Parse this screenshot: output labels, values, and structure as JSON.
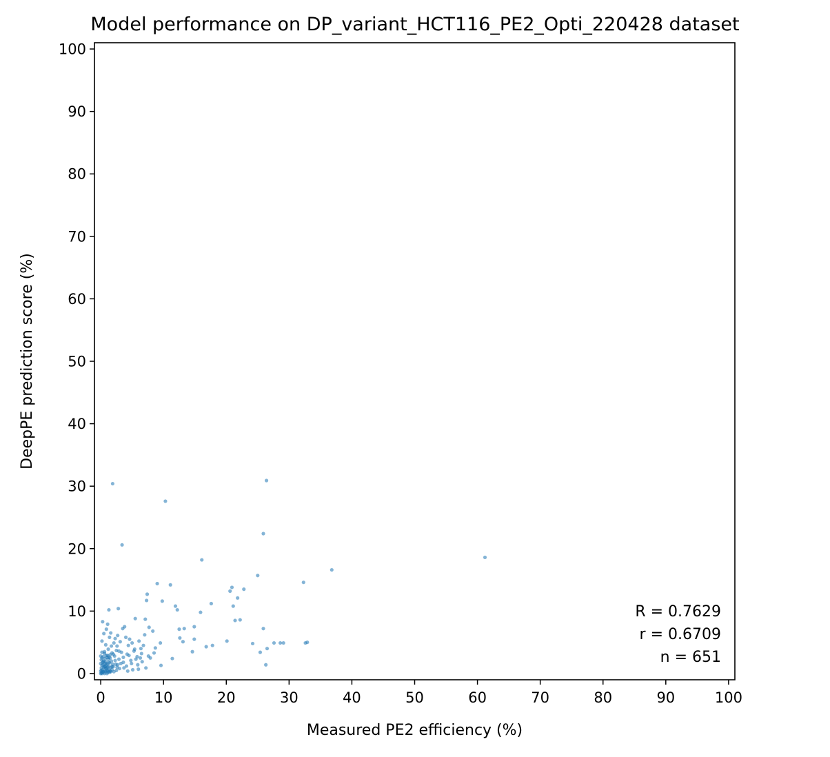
{
  "chart_data": {
    "type": "scatter",
    "title": "Model performance on DP_variant_HCT116_PE2_Opti_220428 dataset",
    "xlabel": "Measured PE2 efficiency (%)",
    "ylabel": "DeepPE prediction score (%)",
    "xlim": [
      -1,
      101
    ],
    "ylim": [
      -1,
      101
    ],
    "xticks": [
      0,
      10,
      20,
      30,
      40,
      50,
      60,
      70,
      80,
      90,
      100
    ],
    "yticks": [
      0,
      10,
      20,
      30,
      40,
      50,
      60,
      70,
      80,
      90,
      100
    ],
    "xtick_labels": [
      "0",
      "10",
      "20",
      "30",
      "40",
      "50",
      "60",
      "70",
      "80",
      "90",
      "100"
    ],
    "ytick_labels": [
      "0",
      "10",
      "20",
      "30",
      "40",
      "50",
      "60",
      "70",
      "80",
      "90",
      "100"
    ],
    "grid": false,
    "legend": "none",
    "point_color": "#1f77b4",
    "stats": [
      "R = 0.7629",
      "r = 0.6709",
      "n = 651"
    ],
    "stats_position": "bottom-right",
    "points": [
      [
        61.2,
        18.6
      ],
      [
        26.4,
        30.9
      ],
      [
        25.9,
        22.4
      ],
      [
        36.8,
        16.6
      ],
      [
        32.3,
        14.6
      ],
      [
        32.6,
        4.9
      ],
      [
        32.9,
        5.0
      ],
      [
        29.1,
        4.9
      ],
      [
        28.6,
        4.9
      ],
      [
        27.6,
        4.9
      ],
      [
        26.5,
        4.0
      ],
      [
        26.3,
        1.4
      ],
      [
        25.9,
        7.2
      ],
      [
        25.4,
        3.4
      ],
      [
        25.0,
        15.7
      ],
      [
        24.2,
        4.8
      ],
      [
        22.8,
        13.5
      ],
      [
        22.2,
        8.6
      ],
      [
        21.8,
        12.1
      ],
      [
        21.4,
        8.5
      ],
      [
        21.1,
        10.8
      ],
      [
        20.9,
        13.8
      ],
      [
        20.6,
        13.2
      ],
      [
        20.1,
        5.2
      ],
      [
        17.8,
        4.5
      ],
      [
        17.6,
        11.2
      ],
      [
        16.1,
        18.2
      ],
      [
        16.8,
        4.3
      ],
      [
        15.9,
        9.8
      ],
      [
        14.9,
        7.5
      ],
      [
        14.9,
        5.5
      ],
      [
        14.6,
        3.5
      ],
      [
        13.3,
        7.2
      ],
      [
        13.1,
        5.1
      ],
      [
        12.6,
        5.7
      ],
      [
        12.5,
        7.1
      ],
      [
        12.2,
        10.2
      ],
      [
        11.9,
        10.8
      ],
      [
        11.4,
        2.4
      ],
      [
        11.1,
        14.2
      ],
      [
        10.3,
        27.6
      ],
      [
        9.8,
        11.6
      ],
      [
        9.5,
        4.9
      ],
      [
        9.6,
        1.3
      ],
      [
        9.0,
        14.4
      ],
      [
        8.7,
        4.1
      ],
      [
        8.5,
        3.3
      ],
      [
        8.3,
        6.8
      ],
      [
        7.9,
        2.5
      ],
      [
        7.7,
        7.4
      ],
      [
        7.4,
        12.7
      ],
      [
        7.3,
        11.7
      ],
      [
        7.1,
        8.7
      ],
      [
        7.0,
        6.2
      ],
      [
        6.8,
        4.5
      ],
      [
        6.5,
        3.2
      ],
      [
        6.3,
        2.5
      ],
      [
        6.1,
        5.2
      ],
      [
        5.9,
        1.4
      ],
      [
        5.5,
        8.8
      ],
      [
        5.3,
        3.6
      ],
      [
        5.0,
        4.9
      ],
      [
        4.8,
        2.1
      ],
      [
        4.6,
        5.5
      ],
      [
        4.4,
        4.5
      ],
      [
        4.2,
        3.1
      ],
      [
        4.0,
        5.8
      ],
      [
        3.8,
        7.5
      ],
      [
        3.6,
        1.8
      ],
      [
        3.4,
        20.6
      ],
      [
        3.5,
        7.2
      ],
      [
        3.3,
        3.4
      ],
      [
        3.1,
        5.1
      ],
      [
        2.9,
        2.3
      ],
      [
        2.8,
        10.4
      ],
      [
        2.7,
        6.1
      ],
      [
        2.6,
        4.4
      ],
      [
        2.5,
        3.7
      ],
      [
        2.4,
        1.5
      ],
      [
        2.3,
        5.6
      ],
      [
        2.2,
        2.8
      ],
      [
        2.1,
        4.9
      ],
      [
        2.0,
        1.1
      ],
      [
        1.9,
        30.4
      ],
      [
        1.8,
        3.3
      ],
      [
        1.7,
        4.4
      ],
      [
        1.6,
        6.5
      ],
      [
        1.5,
        2.5
      ],
      [
        1.4,
        5.8
      ],
      [
        1.3,
        10.2
      ],
      [
        1.2,
        3.9
      ],
      [
        1.1,
        7.9
      ],
      [
        1.0,
        2.6
      ],
      [
        0.9,
        7.1
      ],
      [
        0.8,
        4.6
      ],
      [
        0.7,
        1.5
      ],
      [
        0.6,
        3.2
      ],
      [
        0.5,
        6.4
      ],
      [
        0.4,
        1.9
      ],
      [
        0.3,
        8.3
      ],
      [
        0.2,
        5.2
      ],
      [
        0.1,
        2.2
      ],
      [
        0.0,
        0.4
      ],
      [
        0.1,
        0.9
      ],
      [
        0.2,
        1.3
      ],
      [
        0.3,
        0.6
      ],
      [
        0.4,
        2.7
      ],
      [
        0.5,
        0.3
      ],
      [
        0.6,
        1.1
      ],
      [
        0.7,
        0.5
      ],
      [
        0.8,
        1.9
      ],
      [
        0.9,
        0.8
      ],
      [
        1.0,
        1.4
      ],
      [
        1.1,
        0.2
      ],
      [
        1.2,
        2.3
      ],
      [
        1.3,
        0.7
      ],
      [
        1.4,
        1.7
      ],
      [
        1.5,
        0.4
      ],
      [
        1.6,
        1.0
      ],
      [
        1.7,
        2.0
      ],
      [
        1.8,
        0.6
      ],
      [
        1.9,
        1.5
      ],
      [
        2.0,
        3.1
      ],
      [
        0.0,
        1.6
      ],
      [
        0.2,
        2.5
      ],
      [
        0.4,
        0.2
      ],
      [
        0.6,
        3.5
      ],
      [
        0.8,
        0.9
      ],
      [
        1.0,
        0.5
      ],
      [
        1.2,
        1.2
      ],
      [
        0.1,
        0.1
      ],
      [
        0.3,
        1.8
      ],
      [
        0.5,
        1.0
      ],
      [
        0.7,
        2.4
      ],
      [
        0.9,
        1.6
      ],
      [
        1.1,
        2.9
      ],
      [
        1.3,
        1.8
      ],
      [
        1.5,
        3.0
      ],
      [
        0.0,
        2.8
      ],
      [
        0.2,
        3.4
      ],
      [
        3.0,
        0.8
      ],
      [
        3.2,
        1.6
      ],
      [
        3.7,
        0.9
      ],
      [
        4.1,
        1.2
      ],
      [
        4.5,
        2.9
      ],
      [
        5.1,
        0.6
      ],
      [
        5.6,
        2.3
      ],
      [
        6.0,
        0.7
      ],
      [
        6.6,
        1.9
      ],
      [
        7.2,
        0.9
      ],
      [
        2.5,
        0.5
      ],
      [
        2.7,
        1.4
      ],
      [
        2.9,
        3.6
      ],
      [
        3.6,
        2.6
      ],
      [
        4.3,
        0.4
      ],
      [
        4.9,
        1.6
      ],
      [
        5.4,
        3.9
      ],
      [
        5.8,
        2.7
      ],
      [
        6.4,
        4.0
      ],
      [
        7.6,
        2.8
      ],
      [
        0.0,
        0.0
      ],
      [
        0.1,
        0.5
      ],
      [
        0.2,
        0.0
      ],
      [
        0.3,
        0.3
      ],
      [
        0.4,
        1.4
      ],
      [
        0.5,
        2.0
      ],
      [
        0.6,
        0.0
      ],
      [
        0.7,
        1.1
      ],
      [
        0.8,
        0.3
      ],
      [
        0.9,
        2.9
      ],
      [
        1.0,
        0.0
      ],
      [
        1.1,
        1.0
      ],
      [
        1.2,
        0.4
      ],
      [
        1.3,
        2.6
      ],
      [
        1.4,
        0.2
      ],
      [
        1.6,
        0.3
      ],
      [
        1.8,
        1.1
      ],
      [
        2.1,
        0.3
      ],
      [
        2.3,
        2.1
      ],
      [
        2.6,
        1.0
      ]
    ]
  }
}
